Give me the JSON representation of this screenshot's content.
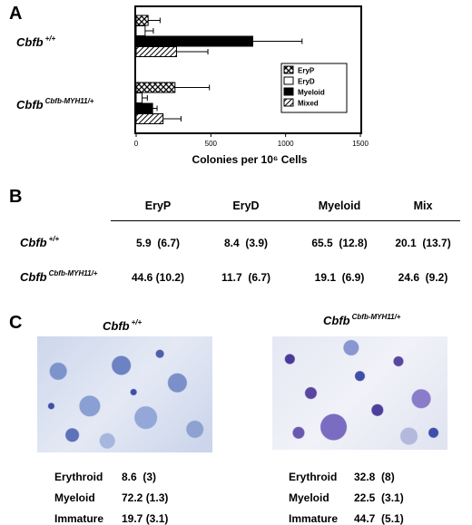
{
  "panels": {
    "a": "A",
    "b": "B",
    "c": "C"
  },
  "genotypes": {
    "wt": {
      "base": "Cbfb",
      "sup": "+/+"
    },
    "mut": {
      "base": "Cbfb",
      "sup": "Cbfb-MYH11/+"
    }
  },
  "chart_data": {
    "type": "bar",
    "orientation": "horizontal",
    "groups": [
      "Cbfb +/+",
      "Cbfb Cbfb-MYH11/+"
    ],
    "series": [
      {
        "name": "EryP",
        "pattern": "crosshatch",
        "values": [
          80,
          260
        ],
        "errors": [
          80,
          230
        ]
      },
      {
        "name": "EryD",
        "pattern": "white",
        "values": [
          60,
          40
        ],
        "errors": [
          55,
          35
        ]
      },
      {
        "name": "Myeloid",
        "pattern": "solid-black",
        "values": [
          780,
          110
        ],
        "errors": [
          330,
          30
        ]
      },
      {
        "name": "Mixed",
        "pattern": "diagonal",
        "values": [
          270,
          180
        ],
        "errors": [
          210,
          120
        ]
      }
    ],
    "xlabel": "Colonies per 10⁶ Cells",
    "xlim": [
      0,
      1500
    ],
    "xticks": [
      "0",
      "500",
      "1000",
      "1500"
    ],
    "legend_position": "right"
  },
  "table": {
    "headers": [
      "EryP",
      "EryD",
      "Myeloid",
      "Mix"
    ],
    "rows": [
      {
        "genotype": "wt",
        "cells": [
          "5.9  (6.7)",
          "8.4  (3.9)",
          "65.5  (12.8)",
          "20.1  (13.7)"
        ]
      },
      {
        "genotype": "mut",
        "cells": [
          "44.6 (10.2)",
          "11.7  (6.7)",
          "19.1  (6.9)",
          "24.6  (9.2)"
        ]
      }
    ]
  },
  "micrographs": [
    {
      "genotype": "wt",
      "stats": [
        {
          "label": "Erythroid",
          "value": "8.6  (3)"
        },
        {
          "label": "Myeloid",
          "value": "72.2 (1.3)"
        },
        {
          "label": "Immature",
          "value": "19.7 (3.1)"
        }
      ]
    },
    {
      "genotype": "mut",
      "stats": [
        {
          "label": "Erythroid",
          "value": "32.8  (8)"
        },
        {
          "label": "Myeloid",
          "value": "22.5  (3.1)"
        },
        {
          "label": "Immature",
          "value": "44.7  (5.1)"
        }
      ]
    }
  ],
  "colors": {
    "bar_fill": "#000000",
    "micrograph_bg": "#dfe6f2",
    "cell_light": "#9fb2d8",
    "cell_dark": "#3f4fa8",
    "cell_purple": "#5a46a0"
  }
}
